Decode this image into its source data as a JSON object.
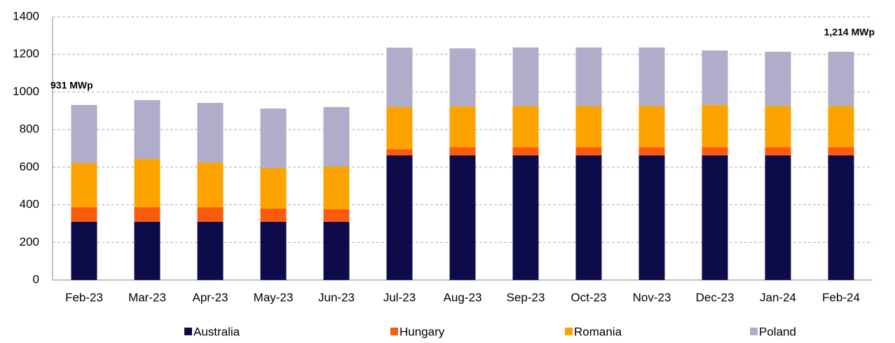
{
  "chart_data": {
    "type": "stacked_bar",
    "categories": [
      "Feb-23",
      "Mar-23",
      "Apr-23",
      "May-23",
      "Jun-23",
      "Jul-23",
      "Aug-23",
      "Sep-23",
      "Oct-23",
      "Nov-23",
      "Dec-23",
      "Jan-24",
      "Feb-24"
    ],
    "series": [
      {
        "name": "Australia",
        "color": "#0e0b4a",
        "values": [
          310,
          310,
          310,
          310,
          310,
          663,
          663,
          663,
          663,
          663,
          663,
          663,
          663
        ]
      },
      {
        "name": "Hungary",
        "color": "#fc5a0c",
        "values": [
          77,
          77,
          77,
          70,
          66,
          33,
          44,
          44,
          44,
          44,
          44,
          44,
          44
        ]
      },
      {
        "name": "Romania",
        "color": "#fca300",
        "values": [
          235,
          257,
          238,
          216,
          227,
          224,
          216,
          218,
          218,
          218,
          224,
          218,
          218
        ]
      },
      {
        "name": "Poland",
        "color": "#b0adcb",
        "values": [
          309,
          313,
          317,
          316,
          317,
          316,
          309,
          312,
          312,
          312,
          290,
          289,
          289
        ]
      }
    ],
    "ylim": [
      0,
      1400
    ],
    "yticks": [
      0,
      200,
      400,
      600,
      800,
      1000,
      1200,
      1400
    ],
    "grid": true,
    "annotations": [
      {
        "text": "931 MWp",
        "category": 0
      },
      {
        "text": "1,214 MWp",
        "category": 12
      }
    ],
    "legend": "bottom"
  }
}
